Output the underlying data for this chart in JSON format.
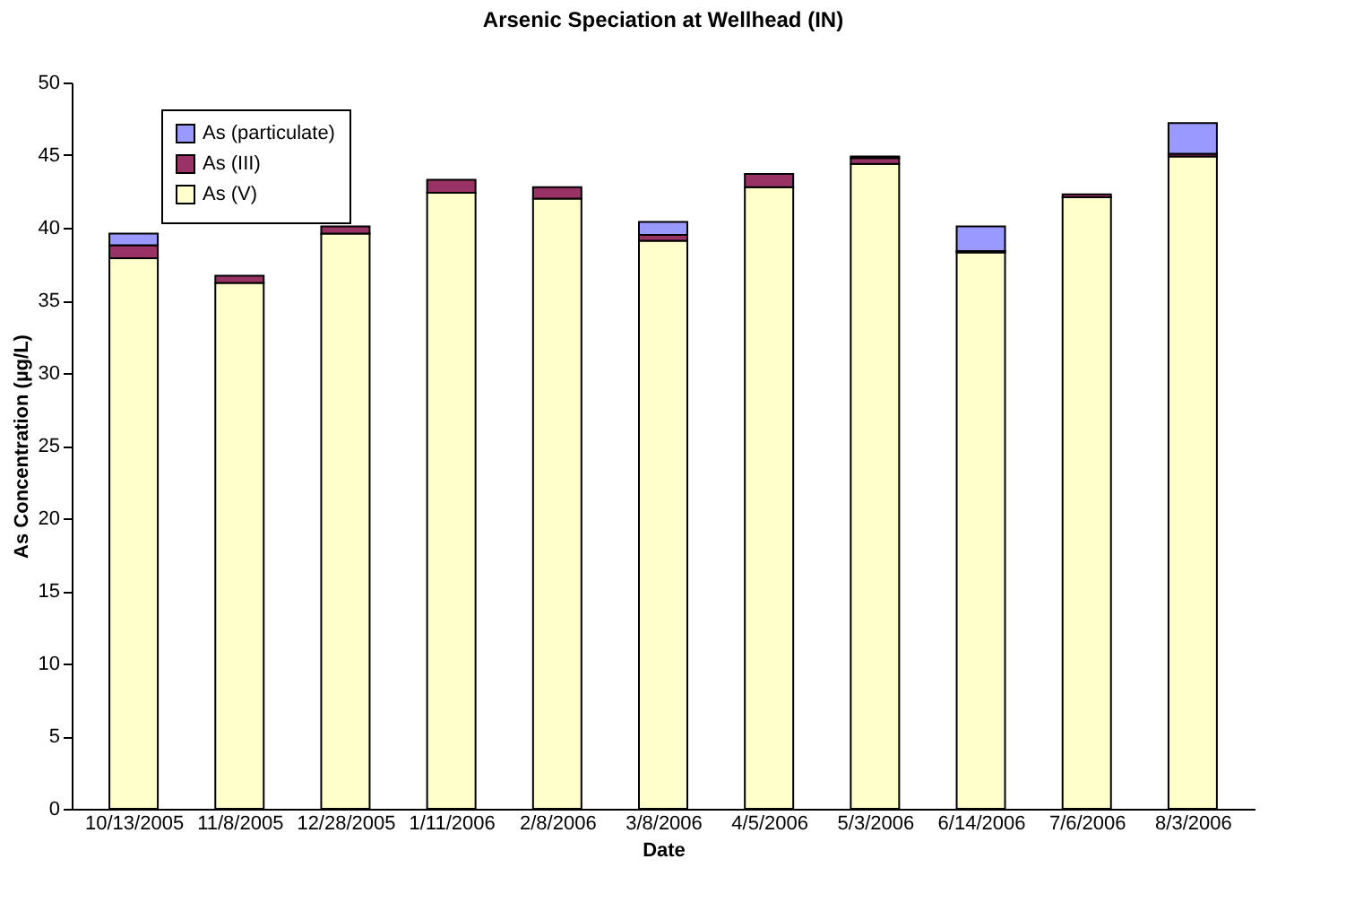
{
  "chart_data": {
    "type": "bar",
    "title": "Arsenic Speciation at Wellhead (IN)",
    "xlabel": "Date",
    "ylabel": "As Concentration (µg/L)",
    "categories": [
      "10/13/2005",
      "11/8/2005",
      "12/28/2005",
      "1/11/2006",
      "2/8/2006",
      "3/8/2006",
      "4/5/2006",
      "5/3/2006",
      "6/14/2006",
      "7/6/2006",
      "8/3/2006"
    ],
    "stacked": true,
    "series": [
      {
        "name": "As (V)",
        "color": "#ffffcc",
        "values": [
          37.9,
          36.2,
          39.6,
          42.4,
          42.0,
          39.1,
          42.8,
          44.4,
          38.3,
          42.1,
          44.9
        ]
      },
      {
        "name": "As (III)",
        "color": "#993366",
        "values": [
          0.9,
          0.5,
          0.5,
          0.9,
          0.8,
          0.4,
          0.9,
          0.4,
          0.1,
          0.2,
          0.2
        ]
      },
      {
        "name": "As (particulate)",
        "color": "#9999ff",
        "values": [
          0.8,
          0,
          0,
          0,
          0,
          0.9,
          0,
          0.1,
          1.7,
          0,
          2.1
        ]
      }
    ],
    "ylim": [
      0,
      50
    ],
    "yticks": [
      0,
      5,
      10,
      15,
      20,
      25,
      30,
      35,
      40,
      45,
      50
    ],
    "grid": false,
    "legend": "top left"
  }
}
